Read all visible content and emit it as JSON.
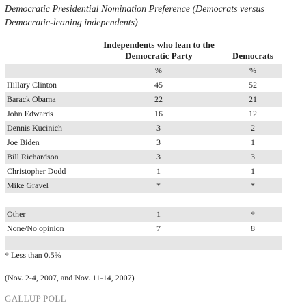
{
  "title": "Democratic Presidential Nomination Preference (Democrats versus Democratic-leaning independents)",
  "table": {
    "column_headers": [
      "Independents who lean to the Democratic Party",
      "Democrats"
    ],
    "units": [
      "%",
      "%"
    ],
    "rows": [
      [
        "Hillary Clinton",
        45,
        52
      ],
      [
        "Barack Obama",
        22,
        21
      ],
      [
        "John Edwards",
        16,
        12
      ],
      [
        "Dennis Kucinich",
        3,
        2
      ],
      [
        "Joe Biden",
        3,
        1
      ],
      [
        "Bill Richardson",
        3,
        3
      ],
      [
        "Christopher Dodd",
        1,
        1
      ],
      [
        "Mike Gravel",
        "*",
        "*"
      ]
    ],
    "other_rows": [
      [
        "Other",
        1,
        "*"
      ],
      [
        "None/No opinion",
        7,
        8
      ]
    ]
  },
  "footnote": "* Less than 0.5%",
  "dates": "(Nov. 2-4, 2007, and Nov. 11-14, 2007)",
  "brand": "GALLUP POLL"
}
